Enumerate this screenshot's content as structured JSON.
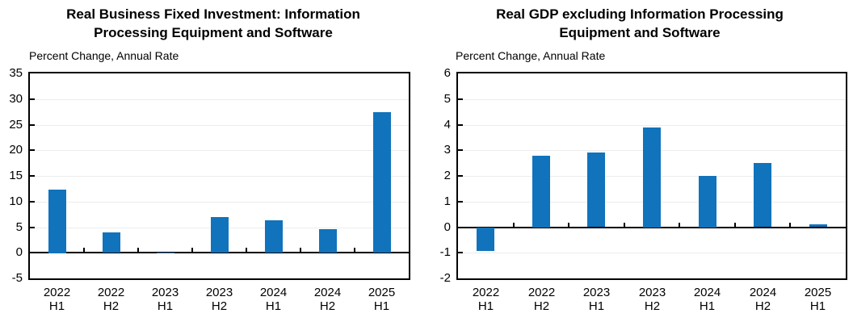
{
  "figure": {
    "background": "#ffffff",
    "text_color": "#000000",
    "axis_color": "#000000",
    "gridline_color": "#ececec"
  },
  "chart_data": [
    {
      "type": "bar",
      "title": "Real Business Fixed Investment: Information Processing Equipment and Software",
      "title_lines": [
        "Real Business Fixed Investment: Information",
        "Processing Equipment and Software"
      ],
      "subtitle": "Percent Change, Annual Rate",
      "xlabel": "",
      "ylabel": "Percent Change, Annual Rate",
      "categories": [
        "2022 H1",
        "2022 H2",
        "2023 H1",
        "2023 H2",
        "2024 H1",
        "2024 H2",
        "2025 H1"
      ],
      "category_lines": [
        [
          "2022",
          "H1"
        ],
        [
          "2022",
          "H2"
        ],
        [
          "2023",
          "H1"
        ],
        [
          "2023",
          "H2"
        ],
        [
          "2024",
          "H1"
        ],
        [
          "2024",
          "H2"
        ],
        [
          "2025",
          "H1"
        ]
      ],
      "values": [
        12.4,
        3.9,
        0.1,
        7.0,
        6.3,
        4.6,
        27.4
      ],
      "ylim": [
        -5,
        35
      ],
      "ytick_step": 5,
      "yticks": [
        -5,
        0,
        5,
        10,
        15,
        20,
        25,
        30,
        35
      ],
      "bar_color": "#1073BC",
      "grid": true,
      "legend": "none"
    },
    {
      "type": "bar",
      "title": "Real GDP excluding Information Processing Equipment and Software",
      "title_lines": [
        "Real GDP excluding Information Processing",
        "Equipment and Software"
      ],
      "subtitle": "Percent Change, Annual Rate",
      "xlabel": "",
      "ylabel": "Percent Change, Annual Rate",
      "categories": [
        "2022 H1",
        "2022 H2",
        "2023 H1",
        "2023 H2",
        "2024 H1",
        "2024 H2",
        "2025 H1"
      ],
      "category_lines": [
        [
          "2022",
          "H1"
        ],
        [
          "2022",
          "H2"
        ],
        [
          "2023",
          "H1"
        ],
        [
          "2023",
          "H2"
        ],
        [
          "2024",
          "H1"
        ],
        [
          "2024",
          "H2"
        ],
        [
          "2025",
          "H1"
        ]
      ],
      "values": [
        -0.9,
        2.8,
        2.9,
        3.9,
        2.0,
        2.5,
        0.1
      ],
      "ylim": [
        -2,
        6
      ],
      "ytick_step": 1,
      "yticks": [
        -2,
        -1,
        0,
        1,
        2,
        3,
        4,
        5,
        6
      ],
      "bar_color": "#1073BC",
      "grid": true,
      "legend": "none"
    }
  ]
}
